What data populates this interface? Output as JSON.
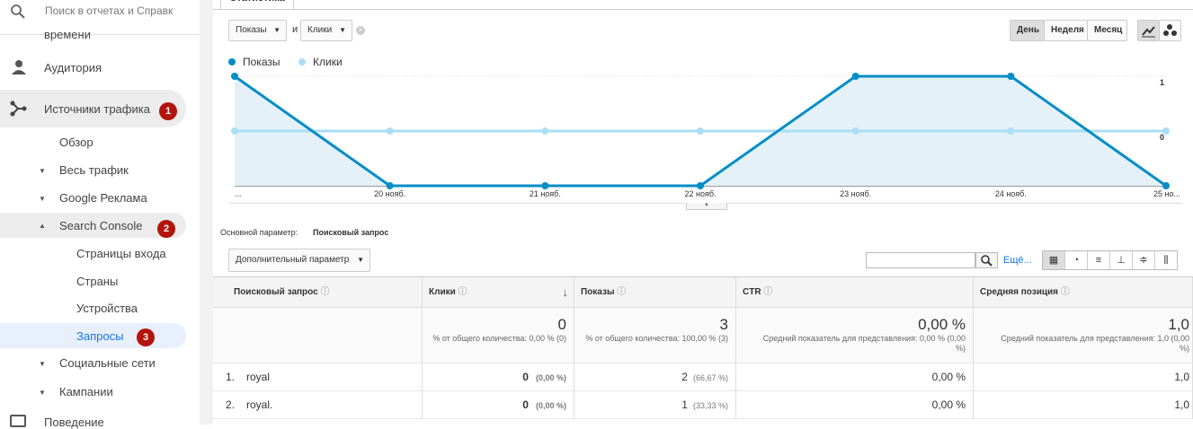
{
  "sidebar": {
    "search_placeholder": "Поиск в отчетах и Справк",
    "items": [
      {
        "label": "времени"
      },
      {
        "label": "Аудитория"
      },
      {
        "label": "Источники трафика",
        "badge": "1"
      },
      {
        "label": "Обзор"
      },
      {
        "label": "Весь трафик"
      },
      {
        "label": "Google Реклама"
      },
      {
        "label": "Search Console",
        "badge": "2"
      },
      {
        "label": "Страницы входа"
      },
      {
        "label": "Страны"
      },
      {
        "label": "Устройства"
      },
      {
        "label": "Запросы",
        "badge": "3"
      },
      {
        "label": "Социальные сети"
      },
      {
        "label": "Кампании"
      },
      {
        "label": "Поведение"
      }
    ]
  },
  "tab": "Статистика",
  "toolbar": {
    "metric1": "Показы",
    "conjunction": "и",
    "metric2": "Клики",
    "periods": [
      "День",
      "Неделя",
      "Месяц"
    ]
  },
  "chart": {
    "type": "line",
    "x": [
      "...",
      "20 нояб.",
      "21 нояб.",
      "22 нояб.",
      "23 нояб.",
      "24 нояб.",
      "25 но..."
    ],
    "series": [
      {
        "name": "Показы",
        "color": "#058dc7",
        "values": [
          1,
          0,
          0,
          0,
          1,
          1,
          0
        ]
      },
      {
        "name": "Клики",
        "color": "#aadff3",
        "axis": "y2",
        "values": [
          0,
          0,
          0,
          0,
          0,
          0,
          0
        ]
      }
    ],
    "ylim": [
      0,
      1
    ],
    "yticks": [
      0.5,
      1
    ],
    "y2lim": [
      -1,
      1
    ],
    "y2ticks": [
      0,
      1
    ],
    "grid": true
  },
  "dimension": {
    "label": "Основной параметр:",
    "value": "Поисковый запрос"
  },
  "secondary_dimension": "Дополнительный параметр",
  "more": "Ещё...",
  "table": {
    "columns": [
      "Поисковый запрос",
      "Клики",
      "Показы",
      "CTR",
      "Средняя позиция"
    ],
    "totals": {
      "clicks": "0",
      "clicks_note": "% от общего количества: 0,00 % (0)",
      "impressions": "3",
      "impressions_note": "% от общего количества: 100,00 % (3)",
      "ctr": "0,00 %",
      "ctr_note": "Средний показатель для представления: 0,00 % (0,00 %)",
      "position": "1,0",
      "position_note": "Средний показатель для представления: 1,0 (0,00 %)"
    },
    "rows": [
      {
        "index": "1.",
        "query": "royal",
        "clicks": "0",
        "clicks_pct": "(0,00 %)",
        "impressions": "2",
        "impressions_pct": "(66,67 %)",
        "ctr": "0,00 %",
        "position": "1,0"
      },
      {
        "index": "2.",
        "query": "royal.",
        "clicks": "0",
        "clicks_pct": "(0,00 %)",
        "impressions": "1",
        "impressions_pct": "(33,33 %)",
        "ctr": "0,00 %",
        "position": "1,0"
      }
    ]
  }
}
